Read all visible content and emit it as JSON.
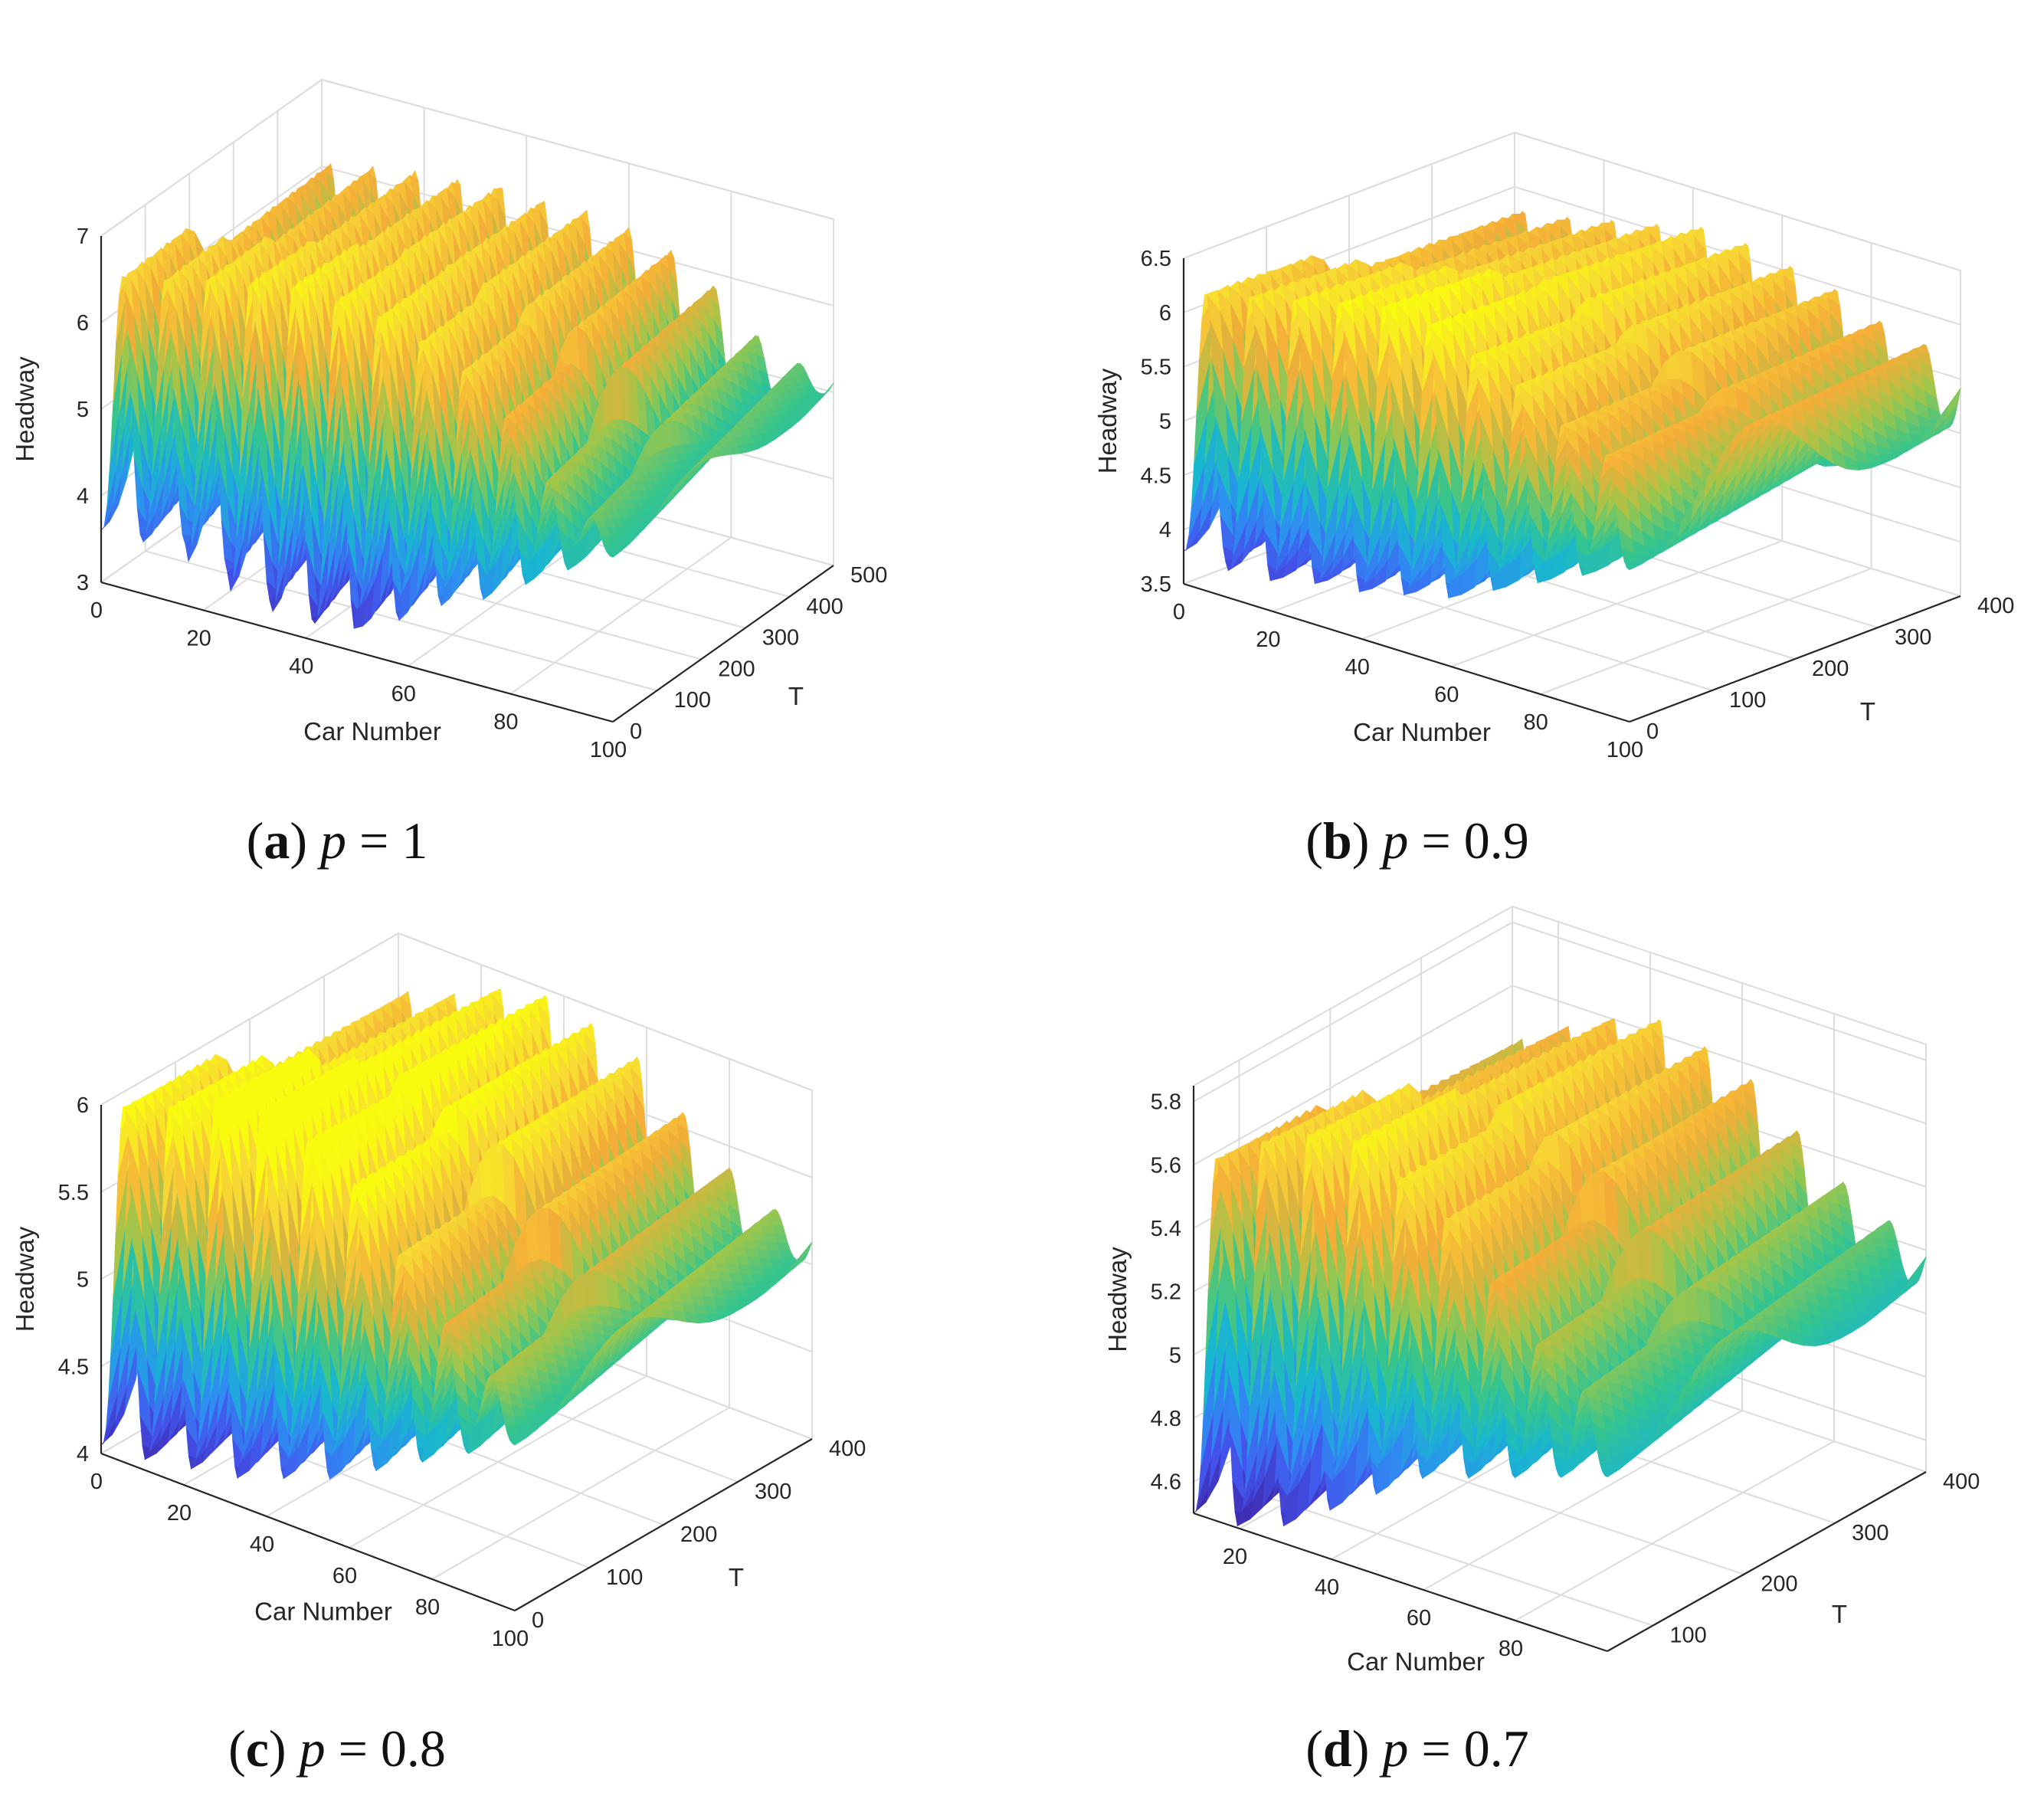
{
  "figure": {
    "colormap": [
      "#3e26a8",
      "#4354ec",
      "#2f8cf2",
      "#19b6cf",
      "#36c58d",
      "#a0c64a",
      "#f4ad38",
      "#f7d934",
      "#f9fb0e"
    ]
  },
  "chart_data": [
    {
      "type": "surface",
      "caption": {
        "letter": "a",
        "p": "p",
        "eq": "= 1"
      },
      "xlabel": "Car Number",
      "ylabel": "T",
      "zlabel": "Headway",
      "xlim": [
        0,
        100
      ],
      "ylim": [
        0,
        500
      ],
      "zlim": [
        3,
        7
      ],
      "xticks": [
        "0",
        "20",
        "40",
        "60",
        "80",
        "100"
      ],
      "yticks": [
        "0",
        "100",
        "200",
        "300",
        "400",
        "500"
      ],
      "zticks": [
        "3",
        "4",
        "5",
        "6",
        "7"
      ],
      "wave_peaks": [
        6.6,
        6.7,
        6.85,
        6.95,
        7.05,
        7.0,
        6.95,
        6.8,
        6.6,
        6.2,
        5.6,
        5.3
      ],
      "wave_troughs": [
        3.6,
        3.7,
        3.5,
        3.3,
        3.2,
        3.2,
        3.5,
        3.8,
        4.0,
        4.3,
        4.6,
        4.9
      ]
    },
    {
      "type": "surface",
      "caption": {
        "letter": "b",
        "p": "p",
        "eq": "= 0.9"
      },
      "xlabel": "Car Number",
      "ylabel": "T",
      "zlabel": "Headway",
      "xlim": [
        0,
        100
      ],
      "ylim": [
        0,
        400
      ],
      "zlim": [
        3.5,
        6.5
      ],
      "xticks": [
        "0",
        "20",
        "40",
        "60",
        "80",
        "100"
      ],
      "yticks": [
        "0",
        "100",
        "200",
        "300",
        "400"
      ],
      "zticks": [
        "3.5",
        "4",
        "4.5",
        "5",
        "5.5",
        "6",
        "6.5"
      ],
      "wave_peaks": [
        6.25,
        6.35,
        6.45,
        6.55,
        6.65,
        6.6,
        6.45,
        6.3,
        6.05,
        5.9
      ],
      "wave_troughs": [
        3.8,
        3.75,
        3.85,
        3.9,
        4.0,
        4.1,
        4.3,
        4.5,
        4.7,
        4.9
      ]
    },
    {
      "type": "surface",
      "caption": {
        "letter": "c",
        "p": "p",
        "eq": "= 0.8"
      },
      "xlabel": "Car Number",
      "ylabel": "T",
      "zlabel": "Headway",
      "xlim": [
        0,
        100
      ],
      "ylim": [
        0,
        400
      ],
      "zlim": [
        4,
        6
      ],
      "xticks": [
        "0",
        "20",
        "40",
        "60",
        "80",
        "100"
      ],
      "yticks": [
        "0",
        "100",
        "200",
        "300",
        "400"
      ],
      "zticks": [
        "4",
        "4.5",
        "5",
        "5.5",
        "6"
      ],
      "wave_peaks": [
        6.05,
        6.15,
        6.3,
        6.35,
        6.25,
        6.1,
        5.8,
        5.5,
        5.3
      ],
      "wave_troughs": [
        4.05,
        4.1,
        4.15,
        4.25,
        4.35,
        4.5,
        4.65,
        4.8,
        4.95
      ]
    },
    {
      "type": "surface",
      "caption": {
        "letter": "d",
        "p": "p",
        "eq": "= 0.7"
      },
      "xlabel": "Car Number",
      "ylabel": "T",
      "zlabel": "Headway",
      "xlim": [
        10,
        100
      ],
      "ylim": [
        50,
        400
      ],
      "zlim": [
        4.5,
        5.85
      ],
      "xticks": [
        "20",
        "40",
        "60",
        "80"
      ],
      "yticks": [
        "100",
        "200",
        "300",
        "400"
      ],
      "zticks": [
        "4.6",
        "4.8",
        "5",
        "5.2",
        "5.4",
        "5.6",
        "5.8"
      ],
      "wave_peaks": [
        5.65,
        5.75,
        5.82,
        5.85,
        5.78,
        5.7,
        5.55,
        5.4,
        5.3
      ],
      "wave_troughs": [
        4.5,
        4.55,
        4.65,
        4.75,
        4.85,
        4.9,
        4.95,
        5.0,
        5.05
      ]
    }
  ]
}
